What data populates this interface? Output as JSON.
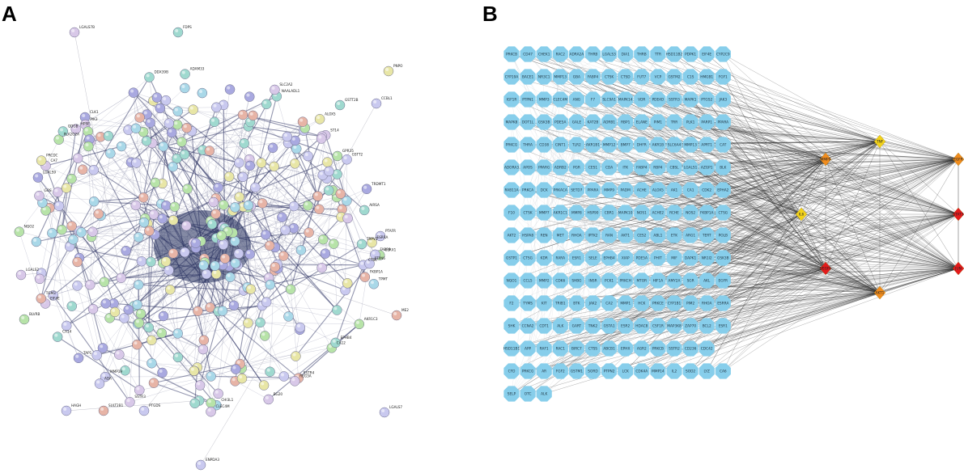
{
  "panels": {
    "a": {
      "letter": "A"
    },
    "b": {
      "letter": "B"
    }
  },
  "colors": {
    "node_fill": "#87ceeb",
    "edge": "#2b2b2b",
    "ppi_edge": "#3a3f6e",
    "target_high": "#e41a1c",
    "target_mid": "#f08c1e",
    "target_low": "#f2d21b",
    "string_palette": [
      "#a9a9e0",
      "#b7e3a8",
      "#e8e6a6",
      "#a9d8e8",
      "#e7b4a6",
      "#c9c9ef",
      "#9fd9cf",
      "#d8c8e8"
    ]
  },
  "ppi_visible_labels": [
    "PNPO",
    "LGALS7",
    "LGALS7B",
    "CCBL1",
    "ENPDA3",
    "HAGH",
    "FDPS",
    "ME2",
    "GSTT2B",
    "SULT2B1",
    "BLVRB",
    "PTAFR",
    "GLRX1",
    "AKR1C3",
    "TPMT",
    "LGALS2",
    "NQO2",
    "FABP6",
    "PRCDC",
    "PTGDS",
    "TRDMT1",
    "QDGB",
    "SSTR3",
    "ESRRA",
    "PLA2G2A",
    "ALOX5",
    "LGALS9",
    "DDX39B",
    "PTPN6",
    "ADA",
    "BG20",
    "SLC2A2",
    "CA7",
    "GSTT2",
    "FKBP1A",
    "CA12",
    "EPHB4",
    "CLEC4M",
    "CA14",
    "AIRSA",
    "ADAM33",
    "CLK1",
    "REG3A",
    "SSTR4",
    "HPSE",
    "TGM3",
    "CTSK",
    "ST14",
    "TAP1",
    "NAALADL1",
    "GOS",
    "EIF4E",
    "GPR35",
    "CHI3L1",
    "PIK3",
    "MMP19",
    "TRPV1"
  ],
  "network_rows": [
    [
      "PRKCB",
      "CD47",
      "CHEK1",
      "RAC2",
      "ADRA2A",
      "THRB",
      "LGALS3",
      "DIA1",
      "THRB",
      "TTR",
      "HSD11B2",
      "PDPK1",
      "EIF4E",
      "CYP2C9"
    ],
    [
      "CYP19A",
      "BACE1",
      "NR3C1",
      "MMP13",
      "GBA",
      "FABP4",
      "CTSK",
      "CTSD",
      "FUT7",
      "VCP",
      "GSTM2",
      "C1S",
      "HMGB1",
      "FGF1"
    ],
    [
      "IGF1R",
      "PTPN1",
      "MMP3",
      "CLEC4M",
      "ANG",
      "F7",
      "SLC9A1",
      "MAPK14",
      "VDR",
      "PDE4D",
      "SSTR3",
      "MAPK1",
      "PTGS2",
      "JAK3"
    ],
    [
      "MAPK8",
      "DOT1L",
      "GSK3B",
      "PDE5A",
      "GALE",
      "KAT2B",
      "ADRB1",
      "RBP1",
      "ELANE",
      "PIM1",
      "TRR",
      "PLK1",
      "PARP1",
      "PPARA"
    ],
    [
      "PRKCG",
      "THRA",
      "CD38",
      "CINT1",
      "TLR2",
      "AKR1B1",
      "MMP12",
      "BMP7",
      "DHFR",
      "AKR1B",
      "SLC6A4",
      "MMP13",
      "APRT1",
      "CAT"
    ],
    [
      "ADORA3",
      "APOS",
      "PPARG",
      "ADRB2",
      "PGR",
      "CES1",
      "CDA",
      "ITK",
      "FABP4",
      "RBP4",
      "CBSL",
      "LGALS1",
      "AZGP1",
      "BLK"
    ],
    [
      "RAB11A",
      "PRKCA",
      "DCK",
      "PRKACA",
      "SETD7",
      "PPARA",
      "MMP9",
      "PADM",
      "ACHE",
      "ALOX5",
      "AK1",
      "CA1",
      "CDK2",
      "EPHA2"
    ],
    [
      "F10",
      "CTSK",
      "MMP7",
      "AKR1C1",
      "MMP8",
      "HSP90",
      "CBR1",
      "MAPK10",
      "NOS1",
      "ACHE2",
      "RCHE",
      "NOS2",
      "FKBP1A",
      "CTSG"
    ],
    [
      "AKT2",
      "HSPA8",
      "REN",
      "MET",
      "RHOA",
      "IPTK2",
      "RAN",
      "AKT1",
      "CES2",
      "ABL1",
      "ETK",
      "ARG1",
      "TERT",
      "POLB"
    ],
    [
      "GSTP1",
      "CTSG",
      "KDR",
      "RARA",
      "ESR1",
      "SELE",
      "EPHB4",
      "XIAP",
      "PDE5A",
      "PHIT",
      "MIF",
      "DAPK1",
      "NR1I2",
      "GSK3B"
    ],
    [
      "NQO1",
      "CCL5",
      "MMP2",
      "CDK6",
      "SHBG",
      "INSR",
      "PCK1",
      "PRKCH",
      "MTOR",
      "HIF1A",
      "AMY2A",
      "SGR",
      "AKL",
      "EGFR"
    ],
    [
      "F2",
      "TYMS",
      "KIT",
      "TRIB1",
      "BTK",
      "JAK2",
      "CA2",
      "MMP1",
      "HCK",
      "PRKCE",
      "CYP1B1",
      "PIM2",
      "RHOA",
      "ESRRA"
    ],
    [
      "SHK",
      "CCNA2",
      "CDT1",
      "ALK",
      "GART",
      "TNK2",
      "GSTA1",
      "ESR2",
      "HDAC8",
      "CSF1R",
      "MAP3K8",
      "ZAP70",
      "BCL2",
      "ESR1"
    ],
    [
      "HSD11B1",
      "APP",
      "RAF1",
      "RAC1",
      "BIRC7",
      "CTSS",
      "ABCB1",
      "EPHX",
      "AGR2",
      "PRKCB",
      "SSTR2",
      "CD236",
      "CDC42"
    ],
    [
      "CFD",
      "PRKCG",
      "AR",
      "FGF2",
      "GSTM1",
      "SORD",
      "PTPN2",
      "LCK",
      "CDK4A",
      "MMP14",
      "IL2",
      "SOD2",
      "LYZ",
      "CA6"
    ],
    [
      "SELP",
      "OTC",
      "ALK"
    ]
  ],
  "targets": [
    {
      "label": "TNF"
    },
    {
      "label": "MMP9"
    },
    {
      "label": "IL6"
    },
    {
      "label": "VEGFA"
    },
    {
      "label": "AKT1"
    },
    {
      "label": "EGFR"
    },
    {
      "label": "STAT3"
    },
    {
      "label": "JUN"
    },
    {
      "label": "SRC"
    }
  ]
}
